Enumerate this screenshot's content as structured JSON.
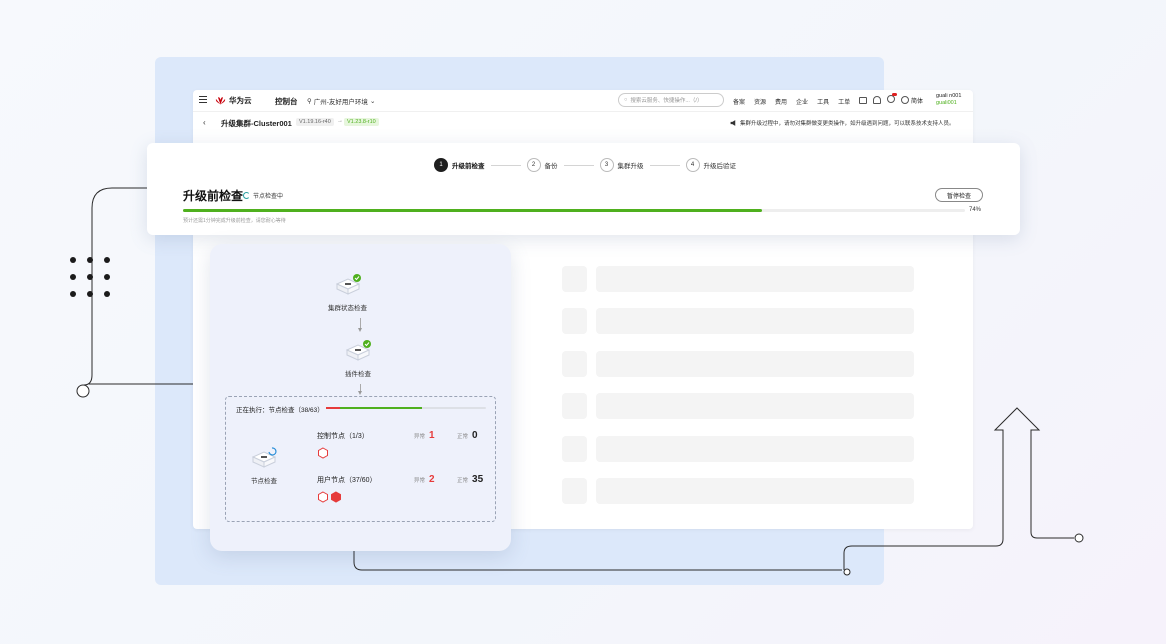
{
  "topbar": {
    "brand": "华为云",
    "console": "控制台",
    "region": "广州-友好用户环境",
    "search_placeholder": "搜索云服务、快捷操作...（/）",
    "nav": [
      "备案",
      "资源",
      "费用",
      "企业",
      "工具",
      "工单"
    ],
    "lang": "简体",
    "user_name": "guali n001",
    "user_sub": "guali001"
  },
  "subbar": {
    "back": "‹",
    "title": "升级集群-Cluster001",
    "from_version": "V1.19.16-r40",
    "arrow": "→",
    "to_version": "V1.23.8-r10",
    "notice": "集群升级过程中，请勿对集群做变更类操作，如升级遇到问题，可以联系技术支持人员。"
  },
  "progress": {
    "steps": [
      {
        "num": "1",
        "label": "升级前检查",
        "active": true
      },
      {
        "num": "2",
        "label": "备份",
        "active": false
      },
      {
        "num": "3",
        "label": "集群升级",
        "active": false
      },
      {
        "num": "4",
        "label": "升级后验证",
        "active": false
      }
    ],
    "title": "升级前检查",
    "status": "节点检查中",
    "pause_label": "暂停检查",
    "percent_value": 74,
    "percent_text": "74%",
    "hint": "预计还需1分钟完成升级前检查，请您耐心等待"
  },
  "flow": {
    "cluster_check": "集群状态检查",
    "plugin_check": "插件检查",
    "executing": "正在执行：节点检查（38/63）",
    "node_check": "节点检查",
    "control": {
      "title": "控制节点（1/3）",
      "abnormal_label": "异常",
      "abnormal": "1",
      "normal_label": "正常",
      "normal": "0"
    },
    "user": {
      "title": "用户节点（37/60）",
      "abnormal_label": "异常",
      "abnormal": "2",
      "normal_label": "正常",
      "normal": "35"
    }
  },
  "colors": {
    "accent": "#4fb01e",
    "error": "#e63b3b",
    "brand": "#c7000b"
  }
}
